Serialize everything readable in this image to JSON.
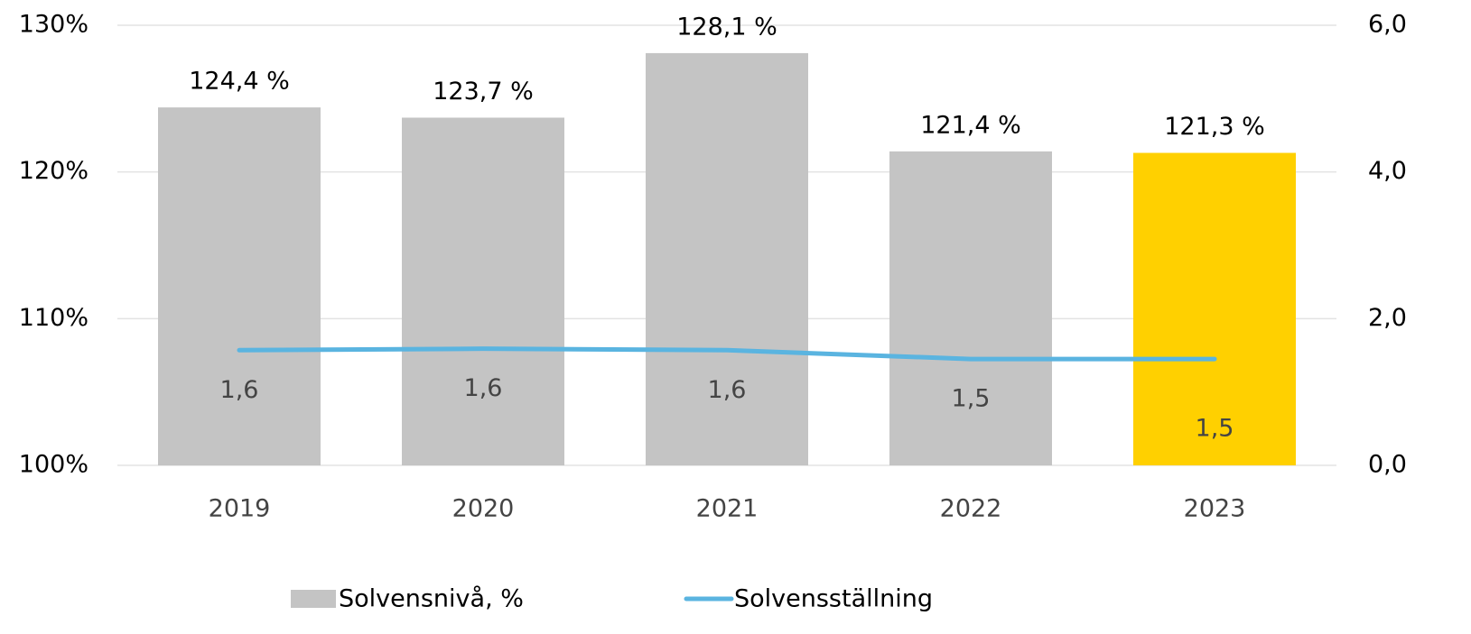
{
  "chart_data": {
    "type": "bar",
    "categories": [
      "2019",
      "2020",
      "2021",
      "2022",
      "2023"
    ],
    "series": [
      {
        "name": "Solvensnivå, %",
        "type": "bar",
        "colors": [
          "#c4c4c4",
          "#c4c4c4",
          "#c4c4c4",
          "#c4c4c4",
          "#ffd000"
        ],
        "color": "#c4c4c4",
        "values": [
          124.4,
          123.7,
          128.1,
          121.4,
          121.3
        ],
        "value_labels": [
          "124,4 %",
          "123,7 %",
          "128,1 %",
          "121,4 %",
          "121,3 %"
        ]
      },
      {
        "name": "Solvensställning",
        "type": "line",
        "axis": "y2",
        "color": "#5ab4e0",
        "values": [
          1.57,
          1.59,
          1.57,
          1.45,
          1.45
        ],
        "value_labels": [
          "1,6",
          "1,6",
          "1,6",
          "1,5",
          "1,5"
        ]
      }
    ],
    "ylim": [
      100,
      130
    ],
    "yticks": [
      {
        "value": 100,
        "label": "100%"
      },
      {
        "value": 110,
        "label": "110%"
      },
      {
        "value": 120,
        "label": "120%"
      },
      {
        "value": 130,
        "label": "130%"
      }
    ],
    "y2lim": [
      0,
      6
    ],
    "y2ticks": [
      {
        "value": 0,
        "label": "0,0"
      },
      {
        "value": 2,
        "label": "2,0"
      },
      {
        "value": 4,
        "label": "4,0"
      },
      {
        "value": 6,
        "label": "6,0"
      }
    ],
    "grid": true,
    "legend": "bottom"
  }
}
